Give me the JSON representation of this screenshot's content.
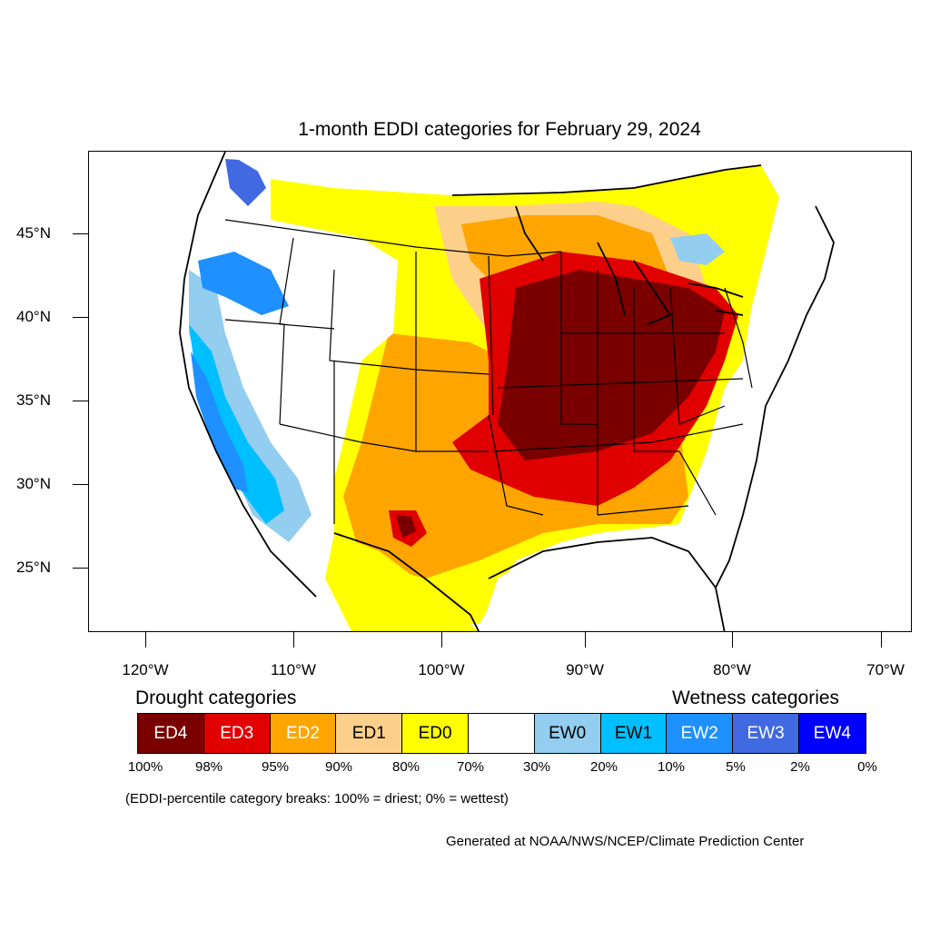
{
  "title": "1-month EDDI categories for February 29, 2024",
  "axes": {
    "latitude_labels": [
      "45°N",
      "40°N",
      "35°N",
      "30°N",
      "25°N"
    ],
    "longitude_labels": [
      "120°W",
      "110°W",
      "100°W",
      "90°W",
      "80°W",
      "70°W"
    ]
  },
  "legend": {
    "drought_heading": "Drought categories",
    "wetness_heading": "Wetness categories",
    "categories": [
      {
        "label": "ED4",
        "color": "#7a0000"
      },
      {
        "label": "ED3",
        "color": "#e00000"
      },
      {
        "label": "ED2",
        "color": "#ffa500"
      },
      {
        "label": "ED1",
        "color": "#fcd08a"
      },
      {
        "label": "ED0",
        "color": "#ffff00"
      },
      {
        "label": "",
        "color": "#ffffff"
      },
      {
        "label": "EW0",
        "color": "#93cdf0"
      },
      {
        "label": "EW1",
        "color": "#00bfff"
      },
      {
        "label": "EW2",
        "color": "#1e90ff"
      },
      {
        "label": "EW3",
        "color": "#4169e1"
      },
      {
        "label": "EW4",
        "color": "#0000ff"
      }
    ],
    "breaks": [
      "100%",
      "98%",
      "95%",
      "90%",
      "80%",
      "70%",
      "30%",
      "20%",
      "10%",
      "5%",
      "2%",
      "0%"
    ]
  },
  "note": "(EDDI-percentile category breaks: 100% = driest; 0% = wettest)",
  "credit": "Generated at NOAA/NWS/NCEP/Climate Prediction Center"
}
